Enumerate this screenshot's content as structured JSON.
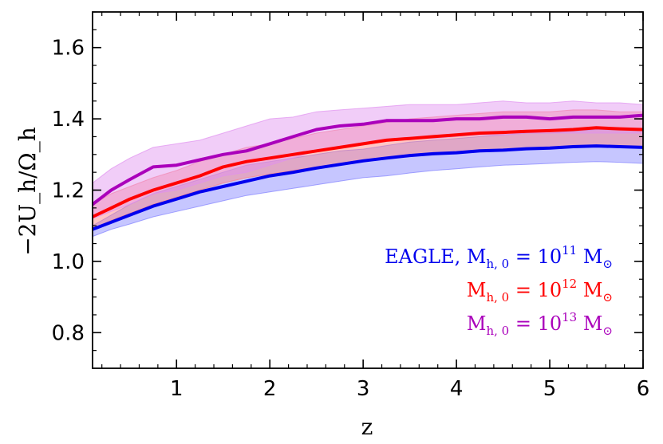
{
  "chart_data": {
    "type": "line",
    "title": "",
    "xlabel": "z",
    "ylabel": "−2U_h/Ω_h",
    "xlim": [
      0.1,
      6.0
    ],
    "ylim": [
      0.7,
      1.7
    ],
    "xticks": [
      1,
      2,
      3,
      4,
      5,
      6
    ],
    "yticks": [
      0.8,
      1.0,
      1.2,
      1.4,
      1.6
    ],
    "xtick_labels": [
      "1",
      "2",
      "3",
      "4",
      "5",
      "6"
    ],
    "ytick_labels": [
      "0.8",
      "1.0",
      "1.2",
      "1.4",
      "1.6"
    ],
    "legend_position": "bottom-right",
    "series": [
      {
        "name": "EAGLE, M_h,0 = 10^11 M_sun",
        "legend_prefix": "EAGLE,",
        "mass_exponent": "11",
        "color": "#0000ee",
        "band_color": "#8080ff",
        "x": [
          0.1,
          0.3,
          0.5,
          0.75,
          1.0,
          1.25,
          1.5,
          1.75,
          2.0,
          2.25,
          2.5,
          2.75,
          3.0,
          3.25,
          3.5,
          3.75,
          4.0,
          4.25,
          4.5,
          4.75,
          5.0,
          5.25,
          5.5,
          5.75,
          6.0
        ],
        "values": [
          1.09,
          1.11,
          1.13,
          1.155,
          1.175,
          1.195,
          1.21,
          1.225,
          1.24,
          1.25,
          1.262,
          1.272,
          1.282,
          1.29,
          1.297,
          1.302,
          1.305,
          1.31,
          1.312,
          1.316,
          1.318,
          1.322,
          1.324,
          1.322,
          1.32
        ],
        "upper": [
          1.1,
          1.13,
          1.16,
          1.19,
          1.21,
          1.23,
          1.25,
          1.27,
          1.28,
          1.29,
          1.3,
          1.31,
          1.315,
          1.325,
          1.335,
          1.34,
          1.345,
          1.35,
          1.355,
          1.36,
          1.36,
          1.365,
          1.37,
          1.37,
          1.37
        ],
        "lower": [
          1.07,
          1.09,
          1.105,
          1.125,
          1.14,
          1.155,
          1.17,
          1.185,
          1.195,
          1.205,
          1.215,
          1.225,
          1.235,
          1.24,
          1.248,
          1.255,
          1.26,
          1.265,
          1.27,
          1.272,
          1.275,
          1.278,
          1.28,
          1.278,
          1.275
        ]
      },
      {
        "name": "M_h,0 = 10^12 M_sun",
        "legend_prefix": "",
        "mass_exponent": "12",
        "color": "#ff0000",
        "band_color": "#ff8080",
        "x": [
          0.1,
          0.3,
          0.5,
          0.75,
          1.0,
          1.25,
          1.5,
          1.75,
          2.0,
          2.25,
          2.5,
          2.75,
          3.0,
          3.25,
          3.5,
          3.75,
          4.0,
          4.25,
          4.5,
          4.75,
          5.0,
          5.25,
          5.5,
          5.75,
          6.0
        ],
        "values": [
          1.125,
          1.15,
          1.175,
          1.2,
          1.22,
          1.24,
          1.265,
          1.28,
          1.29,
          1.3,
          1.31,
          1.32,
          1.33,
          1.34,
          1.345,
          1.35,
          1.355,
          1.36,
          1.362,
          1.365,
          1.367,
          1.37,
          1.375,
          1.372,
          1.37
        ],
        "upper": [
          1.16,
          1.19,
          1.21,
          1.235,
          1.255,
          1.28,
          1.3,
          1.32,
          1.33,
          1.345,
          1.36,
          1.37,
          1.38,
          1.39,
          1.4,
          1.405,
          1.41,
          1.415,
          1.42,
          1.42,
          1.42,
          1.425,
          1.425,
          1.42,
          1.42
        ],
        "lower": [
          1.09,
          1.115,
          1.135,
          1.16,
          1.18,
          1.2,
          1.22,
          1.235,
          1.245,
          1.255,
          1.265,
          1.275,
          1.285,
          1.29,
          1.295,
          1.3,
          1.305,
          1.31,
          1.312,
          1.315,
          1.318,
          1.32,
          1.322,
          1.32,
          1.318
        ]
      },
      {
        "name": "M_h,0 = 10^13 M_sun",
        "legend_prefix": "",
        "mass_exponent": "13",
        "color": "#aa00bb",
        "band_color": "#e090f0",
        "x": [
          0.1,
          0.3,
          0.5,
          0.75,
          1.0,
          1.25,
          1.5,
          1.75,
          2.0,
          2.25,
          2.5,
          2.75,
          3.0,
          3.25,
          3.5,
          3.75,
          4.0,
          4.25,
          4.5,
          4.75,
          5.0,
          5.25,
          5.5,
          5.75,
          6.0
        ],
        "values": [
          1.16,
          1.2,
          1.23,
          1.265,
          1.27,
          1.285,
          1.3,
          1.31,
          1.33,
          1.35,
          1.37,
          1.38,
          1.385,
          1.395,
          1.395,
          1.395,
          1.4,
          1.4,
          1.405,
          1.405,
          1.4,
          1.405,
          1.405,
          1.405,
          1.41
        ],
        "upper": [
          1.22,
          1.26,
          1.29,
          1.32,
          1.33,
          1.34,
          1.36,
          1.38,
          1.4,
          1.405,
          1.42,
          1.425,
          1.43,
          1.435,
          1.44,
          1.44,
          1.44,
          1.445,
          1.45,
          1.445,
          1.445,
          1.45,
          1.445,
          1.445,
          1.44
        ],
        "lower": [
          1.12,
          1.14,
          1.16,
          1.19,
          1.2,
          1.22,
          1.24,
          1.25,
          1.27,
          1.29,
          1.31,
          1.32,
          1.33,
          1.34,
          1.345,
          1.345,
          1.35,
          1.355,
          1.355,
          1.36,
          1.36,
          1.36,
          1.36,
          1.36,
          1.36
        ]
      }
    ]
  }
}
